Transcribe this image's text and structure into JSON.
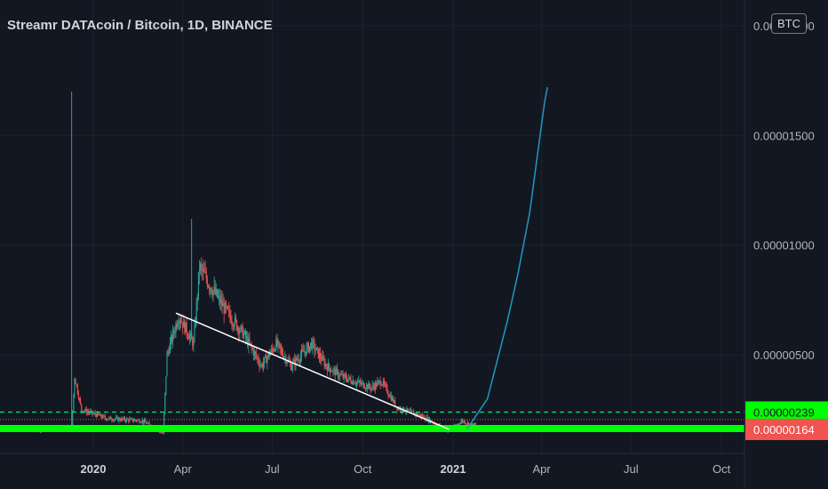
{
  "header": {
    "title": "Streamr DATAcoin / Bitcoin, 1D, BINANCE",
    "currency_badge": "BTC"
  },
  "colors": {
    "background": "#131722",
    "candle_up": "#26a69a",
    "candle_down": "#ef5350",
    "support_line": "#00ff00",
    "resistance_dashed": "#00e676",
    "trendline": "#ffffff",
    "projection_curve": "#2196c8",
    "price_label_green": "#00ff00",
    "price_label_red": "#f05350"
  },
  "chart_data": {
    "type": "candlestick",
    "title": "Streamr DATAcoin / Bitcoin, 1D, BINANCE",
    "ylabel": "BTC",
    "ylim": [
      0,
      2.1e-05
    ],
    "y_ticks": [
      "0.00002000",
      "0.00001500",
      "0.00001000",
      "0.00000500"
    ],
    "x_ticks": [
      "2020",
      "Apr",
      "Jul",
      "Oct",
      "2021",
      "Apr",
      "Jul",
      "Oct"
    ],
    "x_ticks_bold": [
      "2020",
      "2021"
    ],
    "x_dates": [
      "2020-01-01",
      "2020-04-01",
      "2020-07-01",
      "2020-10-01",
      "2021-01-01",
      "2021-04-01",
      "2021-07-01",
      "2021-10-01"
    ],
    "price_key_points": [
      {
        "date": "2019-11-15",
        "price": 1.6e-06
      },
      {
        "date": "2019-12-10",
        "price": 1.7e-06
      },
      {
        "date": "2019-12-13",
        "price": 4e-06
      },
      {
        "date": "2019-12-20",
        "price": 2.5e-06
      },
      {
        "date": "2020-01-15",
        "price": 2.1e-06
      },
      {
        "date": "2020-02-20",
        "price": 2e-06
      },
      {
        "date": "2020-03-12",
        "price": 1.4e-06
      },
      {
        "date": "2020-03-16",
        "price": 5e-06
      },
      {
        "date": "2020-03-28",
        "price": 6.8e-06
      },
      {
        "date": "2020-04-12",
        "price": 5.5e-06
      },
      {
        "date": "2020-04-18",
        "price": 9e-06
      },
      {
        "date": "2020-05-01",
        "price": 8e-06
      },
      {
        "date": "2020-05-15",
        "price": 7e-06
      },
      {
        "date": "2020-06-01",
        "price": 6e-06
      },
      {
        "date": "2020-06-20",
        "price": 4.5e-06
      },
      {
        "date": "2020-07-05",
        "price": 5.5e-06
      },
      {
        "date": "2020-07-20",
        "price": 4.5e-06
      },
      {
        "date": "2020-08-10",
        "price": 5.5e-06
      },
      {
        "date": "2020-08-25",
        "price": 4.5e-06
      },
      {
        "date": "2020-09-10",
        "price": 4e-06
      },
      {
        "date": "2020-10-10",
        "price": 3.5e-06
      },
      {
        "date": "2020-10-20",
        "price": 3.8e-06
      },
      {
        "date": "2020-11-05",
        "price": 2.6e-06
      },
      {
        "date": "2020-12-01",
        "price": 2.2e-06
      },
      {
        "date": "2020-12-28",
        "price": 1.5e-06
      },
      {
        "date": "2021-01-10",
        "price": 2e-06
      },
      {
        "date": "2021-01-20",
        "price": 1.8e-06
      }
    ],
    "wicks": [
      {
        "date": "2019-12-10",
        "high": 1.7e-05
      },
      {
        "date": "2020-04-10",
        "high": 1.12e-05
      }
    ],
    "horizontal_levels": [
      {
        "value": 2.39e-06,
        "label": "0.00000239",
        "style": "dashed"
      },
      {
        "value": 1.64e-06,
        "label": "0.00000164",
        "style": "solid"
      },
      {
        "value": 2.05e-06,
        "style": "dotted"
      }
    ],
    "trendline": {
      "start": {
        "date": "2020-03-25",
        "price": 6.9e-06
      },
      "end": {
        "date": "2020-12-28",
        "price": 1.6e-06
      }
    },
    "projection_curve": [
      {
        "date": "2021-01-15",
        "price": 1.6e-06
      },
      {
        "date": "2021-02-05",
        "price": 3e-06
      },
      {
        "date": "2021-02-25",
        "price": 6.5e-06
      },
      {
        "date": "2021-03-08",
        "price": 8.7e-06
      },
      {
        "date": "2021-03-20",
        "price": 1.15e-05
      },
      {
        "date": "2021-04-04",
        "price": 1.65e-05
      },
      {
        "date": "2021-04-07",
        "price": 1.72e-05
      }
    ],
    "grid": true
  }
}
